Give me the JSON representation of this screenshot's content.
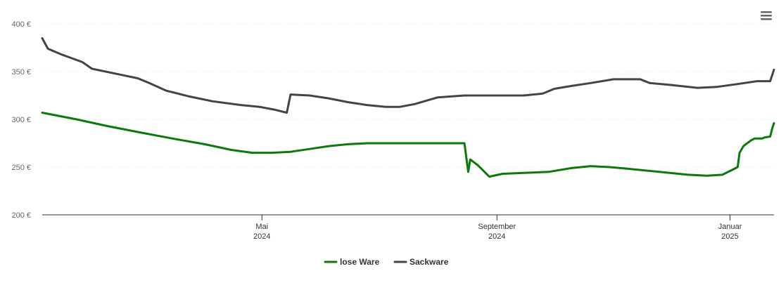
{
  "menu_icon": "hamburger-menu-icon",
  "chart_data": {
    "type": "line",
    "title": "",
    "xlabel": "",
    "ylabel": "",
    "x_range": [
      "2024-01-07",
      "2025-01-24"
    ],
    "ylim": [
      200,
      400
    ],
    "y_ticks": [
      200,
      250,
      300,
      350,
      400
    ],
    "y_tick_labels": [
      "200 €",
      "250 €",
      "300 €",
      "350 €",
      "400 €"
    ],
    "x_ticks": [
      {
        "date": "2024-05-01",
        "line1": "Mai",
        "line2": "2024"
      },
      {
        "date": "2024-09-01",
        "line1": "September",
        "line2": "2024"
      },
      {
        "date": "2025-01-01",
        "line1": "Januar",
        "line2": "2025"
      }
    ],
    "grid": "horizontal dotted",
    "legend": "bottom-center",
    "series": [
      {
        "name": "lose Ware",
        "color": "#0b7a0b",
        "points": [
          [
            "2024-01-07",
            307
          ],
          [
            "2024-01-25",
            300
          ],
          [
            "2024-02-10",
            293
          ],
          [
            "2024-02-28",
            286
          ],
          [
            "2024-03-15",
            280
          ],
          [
            "2024-04-01",
            274
          ],
          [
            "2024-04-15",
            268
          ],
          [
            "2024-04-26",
            265
          ],
          [
            "2024-05-06",
            265
          ],
          [
            "2024-05-16",
            266
          ],
          [
            "2024-05-26",
            269
          ],
          [
            "2024-06-05",
            272
          ],
          [
            "2024-06-15",
            274
          ],
          [
            "2024-06-25",
            275
          ],
          [
            "2024-07-15",
            275
          ],
          [
            "2024-08-01",
            275
          ],
          [
            "2024-08-15",
            275
          ],
          [
            "2024-08-16",
            260
          ],
          [
            "2024-08-17",
            245
          ],
          [
            "2024-08-18",
            258
          ],
          [
            "2024-08-22",
            252
          ],
          [
            "2024-08-28",
            240
          ],
          [
            "2024-09-04",
            243
          ],
          [
            "2024-09-15",
            244
          ],
          [
            "2024-09-28",
            245
          ],
          [
            "2024-10-10",
            249
          ],
          [
            "2024-10-20",
            251
          ],
          [
            "2024-10-30",
            250
          ],
          [
            "2024-11-10",
            248
          ],
          [
            "2024-11-25",
            245
          ],
          [
            "2024-12-10",
            242
          ],
          [
            "2024-12-20",
            241
          ],
          [
            "2024-12-28",
            242
          ],
          [
            "2025-01-02",
            247
          ],
          [
            "2025-01-05",
            250
          ],
          [
            "2025-01-06",
            265
          ],
          [
            "2025-01-08",
            272
          ],
          [
            "2025-01-12",
            278
          ],
          [
            "2025-01-14",
            280
          ],
          [
            "2025-01-18",
            280
          ],
          [
            "2025-01-19",
            281
          ],
          [
            "2025-01-22",
            282
          ],
          [
            "2025-01-23",
            290
          ],
          [
            "2025-01-24",
            296
          ]
        ]
      },
      {
        "name": "Sackware",
        "color": "#434348",
        "points": [
          [
            "2024-01-07",
            385
          ],
          [
            "2024-01-10",
            374
          ],
          [
            "2024-01-17",
            368
          ],
          [
            "2024-01-28",
            360
          ],
          [
            "2024-02-02",
            353
          ],
          [
            "2024-02-14",
            348
          ],
          [
            "2024-02-26",
            343
          ],
          [
            "2024-03-03",
            338
          ],
          [
            "2024-03-12",
            330
          ],
          [
            "2024-03-24",
            324
          ],
          [
            "2024-04-05",
            319
          ],
          [
            "2024-04-20",
            315
          ],
          [
            "2024-04-30",
            313
          ],
          [
            "2024-05-08",
            310
          ],
          [
            "2024-05-14",
            307
          ],
          [
            "2024-05-16",
            326
          ],
          [
            "2024-05-26",
            325
          ],
          [
            "2024-06-05",
            322
          ],
          [
            "2024-06-15",
            318
          ],
          [
            "2024-06-25",
            315
          ],
          [
            "2024-07-05",
            313
          ],
          [
            "2024-07-12",
            313
          ],
          [
            "2024-07-20",
            316
          ],
          [
            "2024-08-01",
            323
          ],
          [
            "2024-08-15",
            325
          ],
          [
            "2024-09-01",
            325
          ],
          [
            "2024-09-15",
            325
          ],
          [
            "2024-09-25",
            327
          ],
          [
            "2024-10-01",
            332
          ],
          [
            "2024-10-10",
            335
          ],
          [
            "2024-10-20",
            338
          ],
          [
            "2024-11-01",
            342
          ],
          [
            "2024-11-15",
            342
          ],
          [
            "2024-11-20",
            338
          ],
          [
            "2024-12-01",
            336
          ],
          [
            "2024-12-15",
            333
          ],
          [
            "2024-12-25",
            334
          ],
          [
            "2025-01-05",
            337
          ],
          [
            "2025-01-15",
            340
          ],
          [
            "2025-01-22",
            340
          ],
          [
            "2025-01-24",
            352
          ]
        ]
      }
    ]
  }
}
